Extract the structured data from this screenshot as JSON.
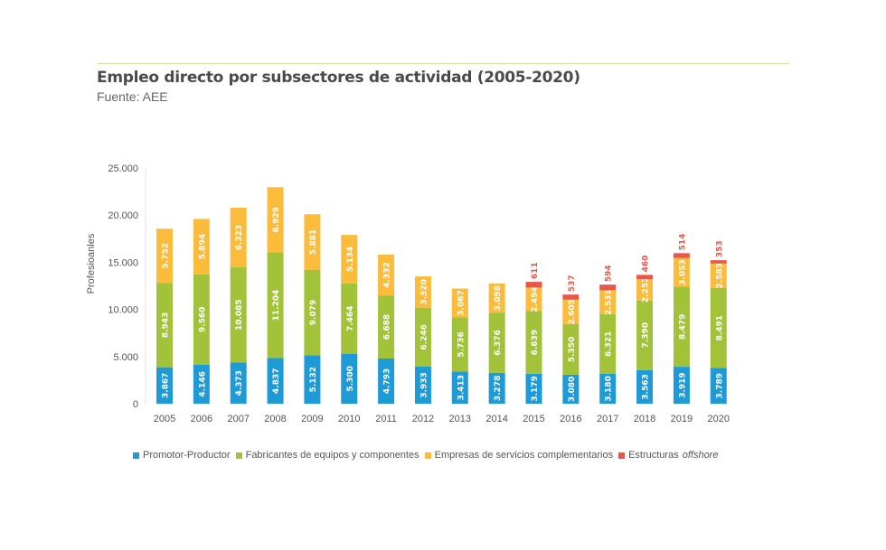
{
  "chart_data": {
    "type": "bar",
    "stacked": true,
    "title": "Empleo directo por subsectores de actividad (2005-2020)",
    "subtitle": "Fuente: AEE",
    "ylabel": "Profesioanles",
    "xlabel": "",
    "ylim": [
      0,
      25000
    ],
    "yticks": [
      "0",
      "5.000",
      "10.000",
      "15.000",
      "20.000",
      "25.000"
    ],
    "grid": false,
    "legend_position": "bottom",
    "categories": [
      "2005",
      "2006",
      "2007",
      "2008",
      "2009",
      "2010",
      "2011",
      "2012",
      "2013",
      "2014",
      "2015",
      "2016",
      "2017",
      "2018",
      "2019",
      "2020"
    ],
    "series": [
      {
        "name": "Promotor-Productor",
        "color": "#1e9bd7",
        "values": [
          3867,
          4146,
          4373,
          4837,
          5132,
          5300,
          4793,
          3933,
          3413,
          3278,
          3179,
          3080,
          3180,
          3563,
          3919,
          3789
        ]
      },
      {
        "name": "Fabricantes de equipos y componentes",
        "color": "#a2c23a",
        "values": [
          8943,
          9560,
          10085,
          11204,
          9079,
          7464,
          6688,
          6246,
          5736,
          6376,
          6639,
          5350,
          6321,
          7390,
          8479,
          8491
        ]
      },
      {
        "name": "Empresas de servicios complementarios",
        "color": "#fbbc3c",
        "values": [
          5752,
          5894,
          6323,
          6929,
          5881,
          5134,
          4332,
          3320,
          3067,
          3098,
          2494,
          2605,
          2531,
          2252,
          3053,
          2583
        ]
      },
      {
        "name": "Estructuras",
        "name_italic": "offshore",
        "color": "#e8584a",
        "values": [
          null,
          null,
          null,
          null,
          null,
          null,
          null,
          null,
          null,
          null,
          611,
          537,
          594,
          460,
          514,
          353
        ]
      }
    ]
  }
}
